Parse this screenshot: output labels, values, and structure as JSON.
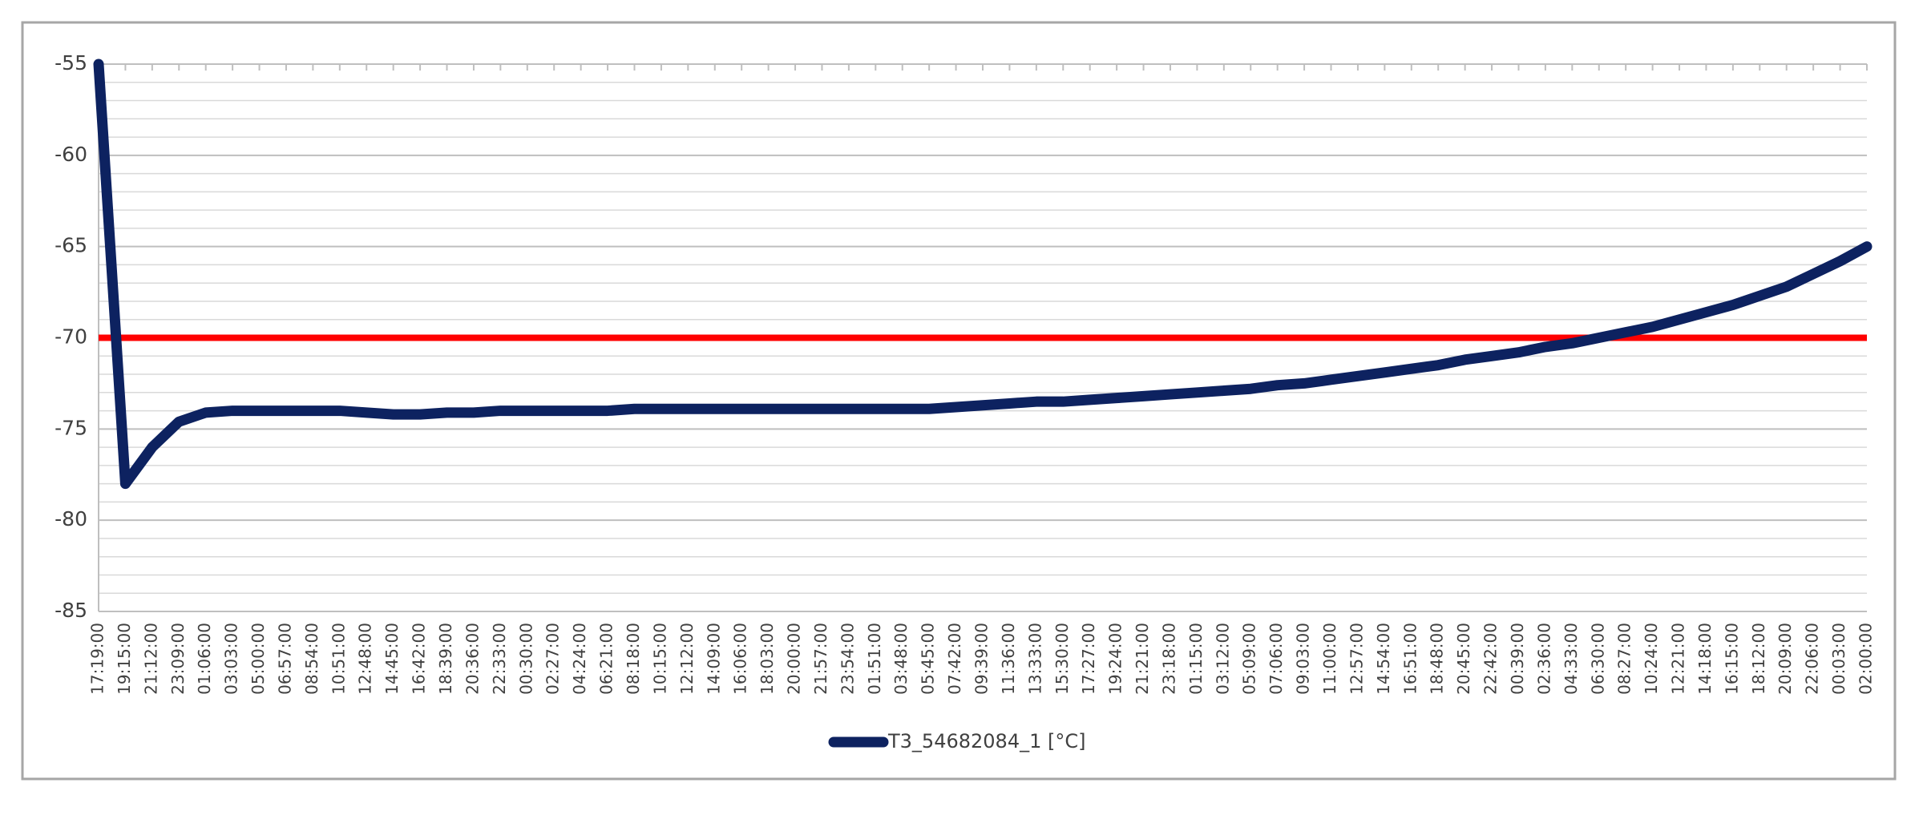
{
  "chart_data": {
    "type": "line",
    "categories": [
      "17:19:00",
      "19:15:00",
      "21:12:00",
      "23:09:00",
      "01:06:00",
      "03:03:00",
      "05:00:00",
      "06:57:00",
      "08:54:00",
      "10:51:00",
      "12:48:00",
      "14:45:00",
      "16:42:00",
      "18:39:00",
      "20:36:00",
      "22:33:00",
      "00:30:00",
      "02:27:00",
      "04:24:00",
      "06:21:00",
      "08:18:00",
      "10:15:00",
      "12:12:00",
      "14:09:00",
      "16:06:00",
      "18:03:00",
      "20:00:00",
      "21:57:00",
      "23:54:00",
      "01:51:00",
      "03:48:00",
      "05:45:00",
      "07:42:00",
      "09:39:00",
      "11:36:00",
      "13:33:00",
      "15:30:00",
      "17:27:00",
      "19:24:00",
      "21:21:00",
      "23:18:00",
      "01:15:00",
      "03:12:00",
      "05:09:00",
      "07:06:00",
      "09:03:00",
      "11:00:00",
      "12:57:00",
      "14:54:00",
      "16:51:00",
      "18:48:00",
      "20:45:00",
      "22:42:00",
      "00:39:00",
      "02:36:00",
      "04:33:00",
      "06:30:00",
      "08:27:00",
      "10:24:00",
      "12:21:00",
      "14:18:00",
      "16:15:00",
      "18:12:00",
      "20:09:00",
      "22:06:00",
      "00:03:00",
      "02:00:00"
    ],
    "series": [
      {
        "name": "T3_54682084_1 [°C]",
        "color": "#0d2260",
        "values": [
          -55,
          -78,
          -76,
          -74.6,
          -74.1,
          -74,
          -74,
          -74,
          -74,
          -74,
          -74.1,
          -74.2,
          -74.2,
          -74.1,
          -74.1,
          -74,
          -74,
          -74,
          -74,
          -74,
          -73.9,
          -73.9,
          -73.9,
          -73.9,
          -73.9,
          -73.9,
          -73.9,
          -73.9,
          -73.9,
          -73.9,
          -73.9,
          -73.9,
          -73.8,
          -73.7,
          -73.6,
          -73.5,
          -73.5,
          -73.4,
          -73.3,
          -73.2,
          -73.1,
          -73,
          -72.9,
          -72.8,
          -72.6,
          -72.5,
          -72.3,
          -72.1,
          -71.9,
          -71.7,
          -71.5,
          -71.2,
          -71,
          -70.8,
          -70.5,
          -70.3,
          -70,
          -69.7,
          -69.4,
          -69,
          -68.6,
          -68.2,
          -67.7,
          -67.2,
          -66.5,
          -65.8,
          -65
        ]
      }
    ],
    "reference_line": {
      "value": -70,
      "color": "#ff0000"
    },
    "ylim": [
      -85,
      -55
    ],
    "yticks": [
      -85,
      -80,
      -75,
      -70,
      -65,
      -60,
      -55
    ],
    "grid": true,
    "minor_grid": 1,
    "legend": "bottom"
  }
}
